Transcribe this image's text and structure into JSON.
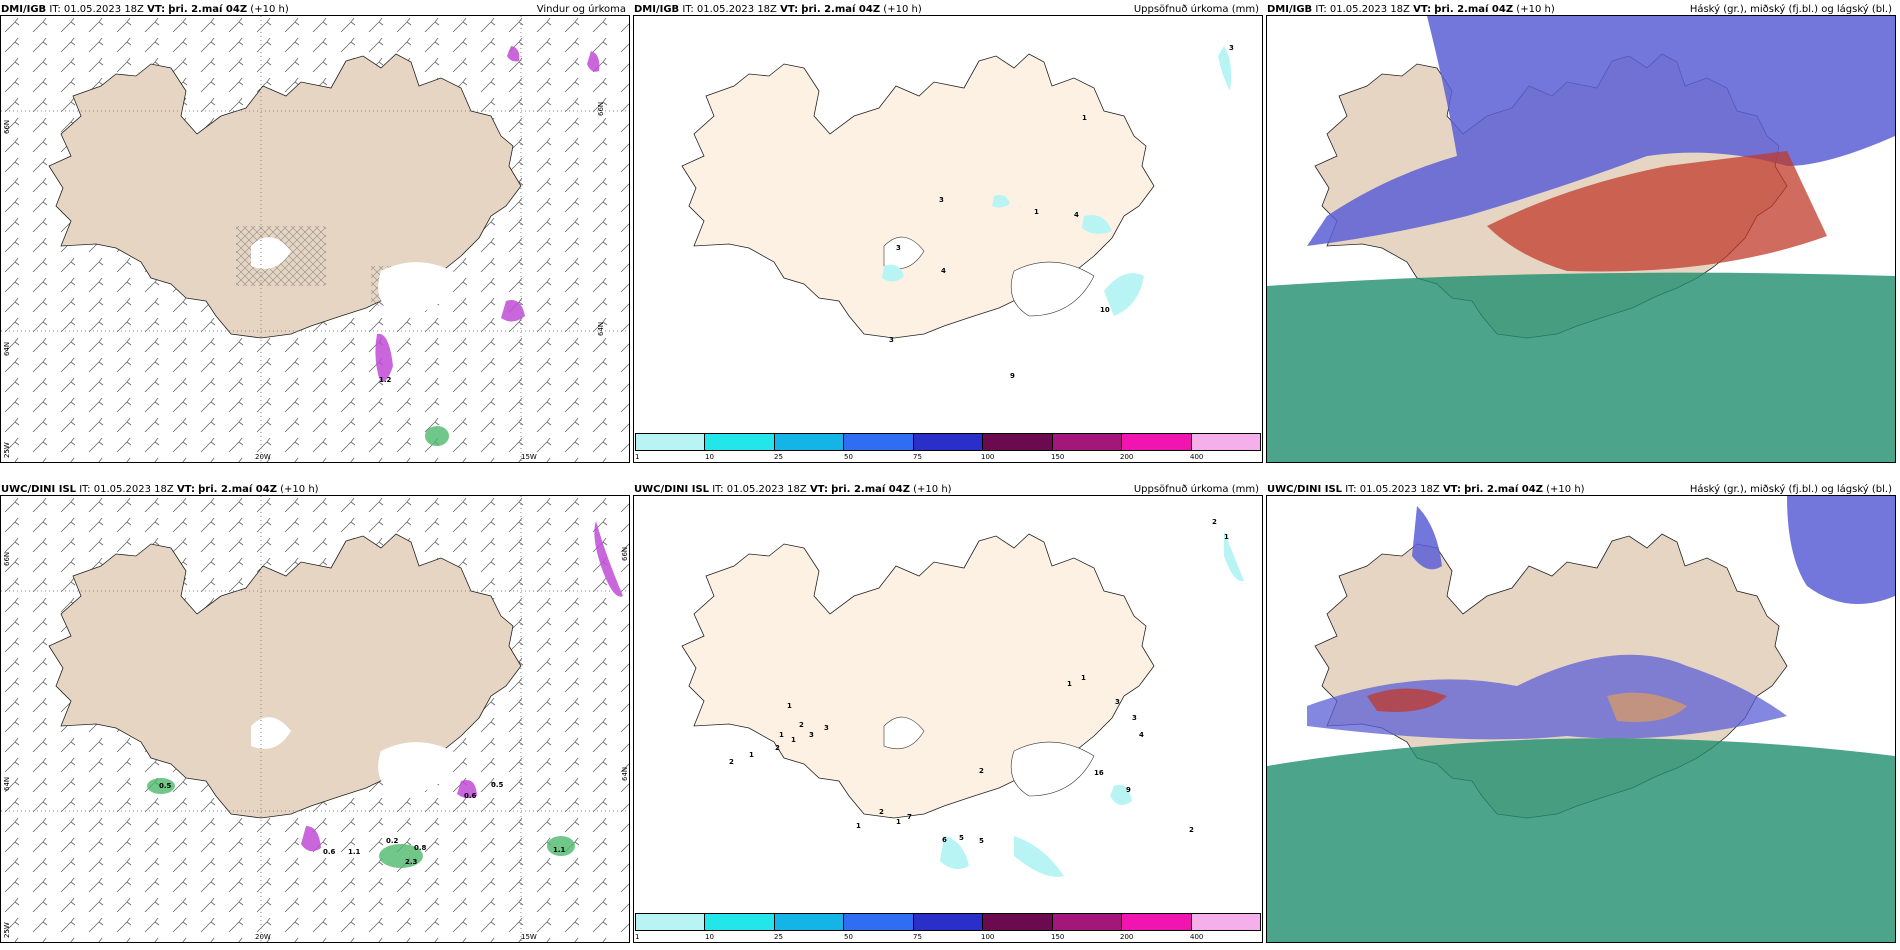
{
  "colors": {
    "land": "#e6d5c3",
    "land_light": "#fdf1e4",
    "sea": "#ffffff",
    "precip_purple": "#c04bd6",
    "precip_green": "#4db86b",
    "cloud_high": "#5b5fd6",
    "cloud_mid": "#c0392b",
    "cloud_low": "#1f8f6e"
  },
  "panels": [
    {
      "id": "dmi-wind",
      "model": "DMI/IGB",
      "init": "IT: 01.05.2023 18Z",
      "vt_label": "VT:",
      "vt": "þri. 2.maí 04Z",
      "lead": "(+10 h)",
      "title": "Vindur og úrkoma",
      "axis": {
        "lat1": "66N",
        "lat2": "64N",
        "lon1": "20W",
        "lon2": "15W",
        "lat3": "25W"
      },
      "labels": [
        "1.2"
      ]
    },
    {
      "id": "dmi-accum",
      "model": "DMI/IGB",
      "init": "IT: 01.05.2023 18Z",
      "vt_label": "VT:",
      "vt": "þri. 2.maí 04Z",
      "lead": "(+10 h)",
      "title": "Uppsöfnuð úrkoma (mm)",
      "labels": [
        "3",
        "1",
        "3",
        "1",
        "4",
        "3",
        "4",
        "3",
        "10",
        "9"
      ]
    },
    {
      "id": "dmi-cloud",
      "model": "DMI/IGB",
      "init": "IT: 01.05.2023 18Z",
      "vt_label": "VT:",
      "vt": "þri. 2.maí 04Z",
      "lead": "(+10 h)",
      "title": "Háský (gr.), miðský (fj.bl.) og lágský (bl.)"
    },
    {
      "id": "uwc-wind",
      "model": "UWC/DINI ISL",
      "init": "IT: 01.05.2023 18Z",
      "vt_label": "VT:",
      "vt": "þri. 2.maí 04Z",
      "lead": "(+10 h)",
      "title": "",
      "axis": {
        "lat1": "66N",
        "lat2": "64N",
        "lon1": "20W",
        "lon2": "15W",
        "lat3": "25W"
      },
      "labels": [
        "0.5",
        "0.6",
        "1.1",
        "0.2",
        "0.8",
        "2.3",
        "0.5",
        "0.6",
        "1.1"
      ]
    },
    {
      "id": "uwc-accum",
      "model": "UWC/DINI ISL",
      "init": "IT: 01.05.2023 18Z",
      "vt_label": "VT:",
      "vt": "þri. 2.maí 04Z",
      "lead": "(+10 h)",
      "title": "Uppsöfnuð úrkoma (mm)",
      "labels": [
        "1",
        "2",
        "1",
        "1",
        "1",
        "3",
        "2",
        "1",
        "2",
        "1",
        "3",
        "3",
        "2",
        "1",
        "2",
        "1",
        "7",
        "6",
        "5",
        "5",
        "2",
        "1",
        "2",
        "16",
        "9",
        "4",
        "3"
      ]
    },
    {
      "id": "uwc-cloud",
      "model": "UWC/DINI ISL",
      "init": "IT: 01.05.2023 18Z",
      "vt_label": "VT:",
      "vt": "þri. 2.maí 04Z",
      "lead": "(+10 h)",
      "title": "Háský (gr.), miðský (fj.bl.) og lágský (bl.)"
    }
  ],
  "colorbar": {
    "colors": [
      "#b8f4f4",
      "#22e6ea",
      "#14b4e6",
      "#2f6df2",
      "#2b2fc9",
      "#6b0a4f",
      "#a3177a",
      "#f014b0",
      "#f5b0ec"
    ],
    "ticks": [
      "1",
      "10",
      "25",
      "50",
      "75",
      "100",
      "150",
      "200",
      "400"
    ]
  }
}
